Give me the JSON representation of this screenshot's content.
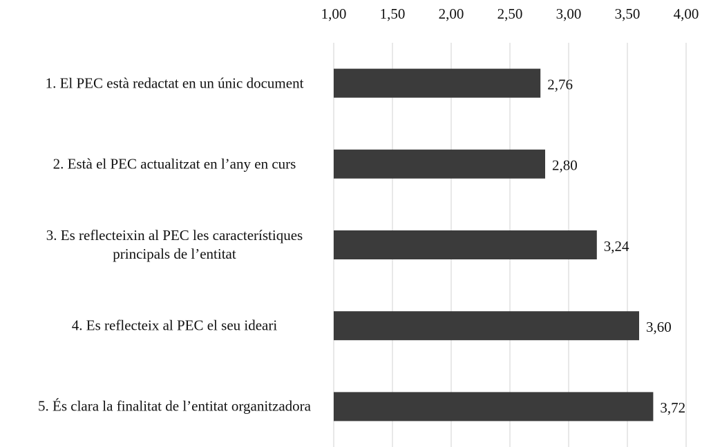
{
  "chart_data": {
    "type": "hbar",
    "categories": [
      "1. El PEC està redactat en un únic document",
      "2. Està el PEC actualitzat en l’any en curs",
      "3. Es reflecteixin al PEC les característiques principals de l’entitat",
      "4. Es reflecteix al PEC el seu ideari",
      "5. És clara la finalitat de l’entitat organitzadora"
    ],
    "values": [
      2.76,
      2.8,
      3.24,
      3.6,
      3.72
    ],
    "value_labels": [
      "2,76",
      "2,80",
      "3,24",
      "3,60",
      "3,72"
    ],
    "color": "#3b3b3b",
    "xlim": [
      1,
      4
    ],
    "xticks": [
      {
        "value": 1,
        "label": "1,00"
      },
      {
        "value": 1.5,
        "label": "1,50"
      },
      {
        "value": 2,
        "label": "2,00"
      },
      {
        "value": 2.5,
        "label": "2,50"
      },
      {
        "value": 3,
        "label": "3,00"
      },
      {
        "value": 3.5,
        "label": "3,50"
      },
      {
        "value": 4,
        "label": "4,00"
      }
    ],
    "grid": true
  }
}
